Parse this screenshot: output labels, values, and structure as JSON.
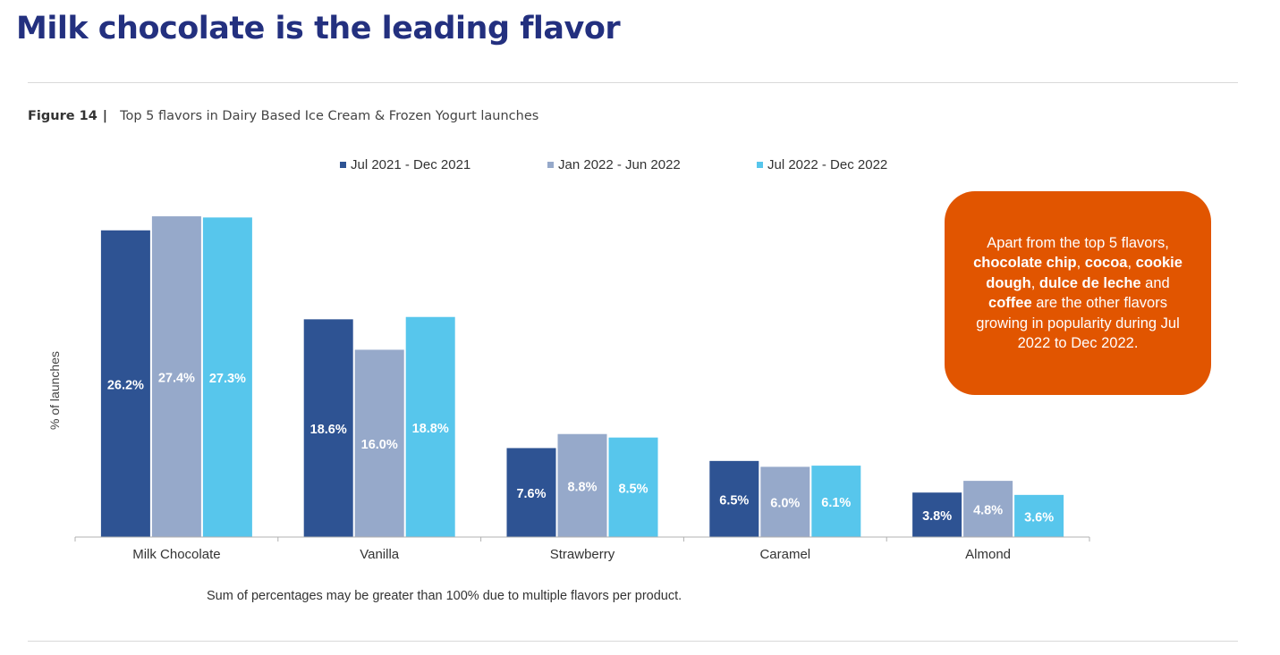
{
  "page": {
    "title": "Milk chocolate is the leading flavor",
    "figure_number": "Figure 14",
    "figure_separator": "|",
    "figure_caption": "Top 5 flavors in Dairy Based Ice Cream & Frozen Yogurt launches",
    "footnote": "Sum of percentages may be greater than 100% due to multiple flavors per product."
  },
  "callout": {
    "parts": [
      {
        "text": "Apart from the top 5 flavors, ",
        "bold": false
      },
      {
        "text": "chocolate chip",
        "bold": true
      },
      {
        "text": ", ",
        "bold": false
      },
      {
        "text": "cocoa",
        "bold": true
      },
      {
        "text": ", ",
        "bold": false
      },
      {
        "text": "cookie dough",
        "bold": true
      },
      {
        "text": ", ",
        "bold": false
      },
      {
        "text": "dulce de leche",
        "bold": true
      },
      {
        "text": " and ",
        "bold": false
      },
      {
        "text": "coffee",
        "bold": true
      },
      {
        "text": " are the other flavors growing in popularity during Jul 2022 to Dec 2022.",
        "bold": false
      }
    ],
    "color": "#e15500"
  },
  "chart_data": {
    "type": "bar",
    "ylabel": "% of launches",
    "xlabel": "",
    "ylim": [
      0,
      30
    ],
    "grid": false,
    "legend_position": "top",
    "categories": [
      "Milk Chocolate",
      "Vanilla",
      "Strawberry",
      "Caramel",
      "Almond"
    ],
    "series": [
      {
        "name": "Jul 2021 - Dec 2021",
        "color": "#2e5393",
        "values": [
          26.2,
          18.6,
          7.6,
          6.5,
          3.8
        ],
        "labels": [
          "26.2%",
          "18.6%",
          "7.6%",
          "6.5%",
          "3.8%"
        ]
      },
      {
        "name": "Jan 2022 - Jun 2022",
        "color": "#96a9ca",
        "values": [
          27.4,
          16.0,
          8.8,
          6.0,
          4.8
        ],
        "labels": [
          "27.4%",
          "16.0%",
          "8.8%",
          "6.0%",
          "4.8%"
        ]
      },
      {
        "name": "Jul 2022 - Dec 2022",
        "color": "#57c6ec",
        "values": [
          27.3,
          18.8,
          8.5,
          6.1,
          3.6
        ],
        "labels": [
          "27.3%",
          "18.8%",
          "8.5%",
          "6.1%",
          "3.6%"
        ]
      }
    ]
  }
}
